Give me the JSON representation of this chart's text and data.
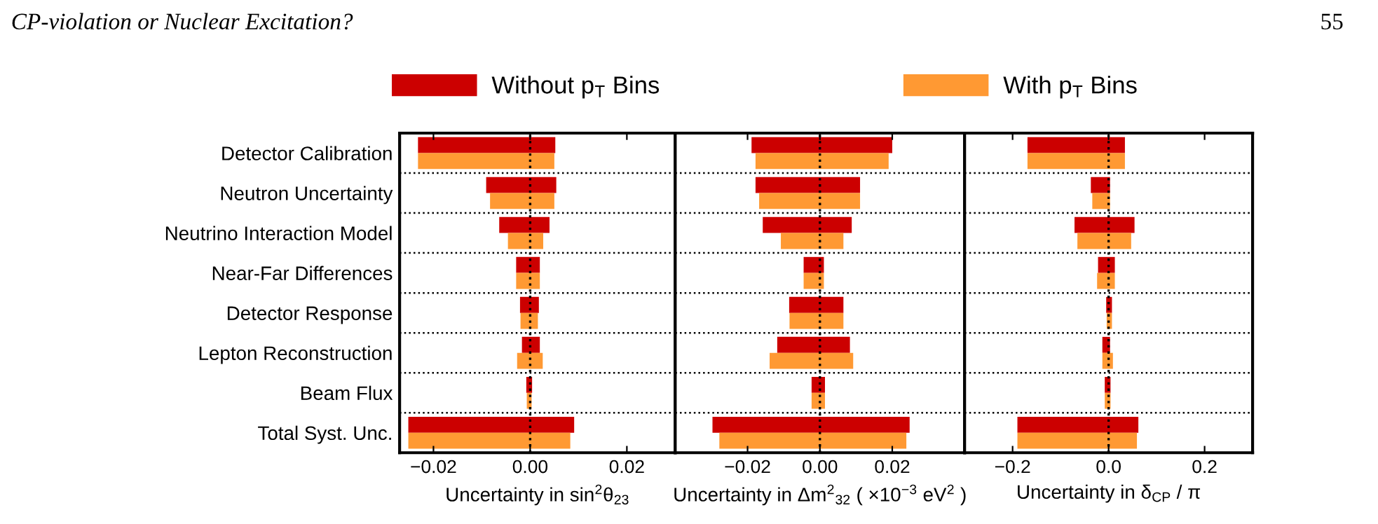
{
  "chart_data": [
    {
      "type": "bar",
      "orientation": "horizontal",
      "title": "CP-violation or Nuclear Excitation?",
      "annotations": [
        "55"
      ],
      "legend": "top",
      "grid": "y",
      "categories": [
        "Detector Calibration",
        "Neutron Uncertainty",
        "Neutrino Interaction Model",
        "Near-Far Differences",
        "Detector Response",
        "Lepton Reconstruction",
        "Beam Flux",
        "Total Syst. Unc."
      ],
      "series": [
        {
          "name": "Without p$_{T}$ Bins",
          "color": "#cc0000",
          "base": [
            -0.0232,
            -0.0091,
            -0.0064,
            -0.0029,
            -0.0021,
            -0.0017,
            -0.0008,
            -0.0252
          ],
          "values": [
            0.0284,
            0.0145,
            0.0104,
            0.0049,
            0.0039,
            0.0037,
            0.0012,
            0.0343
          ]
        },
        {
          "name": "With p$_{T}$ Bins",
          "color": "#ff9933",
          "base": [
            -0.0232,
            -0.0083,
            -0.0046,
            -0.0029,
            -0.002,
            -0.0027,
            -0.0007,
            -0.0252
          ],
          "values": [
            0.0282,
            0.0133,
            0.0073,
            0.0049,
            0.0036,
            0.0053,
            0.001,
            0.0335
          ]
        }
      ],
      "xlim": [
        -0.027,
        0.03
      ],
      "xticks": [
        {
          "value": -0.02,
          "label": "−0.02"
        },
        {
          "value": 0,
          "label": "0.00"
        },
        {
          "value": 0.02,
          "label": "0.02"
        }
      ],
      "xlabel": "Uncertainty in sin$^{2}$θ$_{23}$",
      "ref_lines": [
        {
          "axis": "x",
          "value": 0,
          "line_style": "dotted",
          "color": "#000000"
        }
      ]
    },
    {
      "type": "bar",
      "orientation": "horizontal",
      "grid": "y",
      "tick_labels": "x",
      "categories": [
        null,
        null,
        null,
        null,
        null,
        null,
        null,
        null
      ],
      "series": [
        {
          "color": "#cc0000",
          "base": [
            -0.0189,
            -0.0178,
            -0.0158,
            -0.0045,
            -0.0085,
            -0.0118,
            -0.0023,
            -0.0297
          ],
          "values": [
            0.0389,
            0.0289,
            0.0246,
            0.0056,
            0.015,
            0.0201,
            0.0037,
            0.0545
          ]
        },
        {
          "color": "#ff9933",
          "base": [
            -0.0178,
            -0.0168,
            -0.0108,
            -0.0045,
            -0.0084,
            -0.0139,
            -0.0023,
            -0.0278
          ],
          "values": [
            0.0368,
            0.0279,
            0.0173,
            0.0056,
            0.0149,
            0.0231,
            0.0037,
            0.0517
          ]
        }
      ],
      "xlim": [
        -0.04,
        0.04
      ],
      "xticks": [
        {
          "value": -0.02,
          "label": "−0.02"
        },
        {
          "value": 0,
          "label": "0.00"
        },
        {
          "value": 0.02,
          "label": "0.02"
        }
      ],
      "xlabel": "Uncertainty in Δm$^{2}$$_{32}$ ( ×10$^{−3}$ eV$^{2}$ )",
      "ref_lines": [
        {
          "axis": "x",
          "value": 0,
          "line_style": "dotted",
          "color": "#000000"
        }
      ]
    },
    {
      "type": "bar",
      "orientation": "horizontal",
      "grid": "y",
      "tick_labels": "x",
      "categories": [
        null,
        null,
        null,
        null,
        null,
        null,
        null,
        null
      ],
      "series": [
        {
          "color": "#cc0000",
          "base": [
            -0.169,
            -0.037,
            -0.071,
            -0.022,
            -0.005,
            -0.013,
            -0.008,
            -0.19
          ],
          "values": [
            0.203,
            0.04,
            0.125,
            0.035,
            0.012,
            0.016,
            0.012,
            0.252
          ]
        },
        {
          "color": "#ff9933",
          "base": [
            -0.169,
            -0.034,
            -0.065,
            -0.024,
            -0.004,
            -0.013,
            -0.008,
            -0.19
          ],
          "values": [
            0.203,
            0.037,
            0.112,
            0.037,
            0.011,
            0.022,
            0.012,
            0.249
          ]
        }
      ],
      "xlim": [
        -0.3,
        0.3
      ],
      "xticks": [
        {
          "value": -0.2,
          "label": "−0.2"
        },
        {
          "value": 0,
          "label": "0.0"
        },
        {
          "value": 0.2,
          "label": "0.2"
        }
      ],
      "xlabel": "Uncertainty in δ$_{CP}$ / π",
      "ref_lines": [
        {
          "axis": "x",
          "value": 0,
          "line_style": "dotted",
          "color": "#000000"
        }
      ]
    }
  ]
}
